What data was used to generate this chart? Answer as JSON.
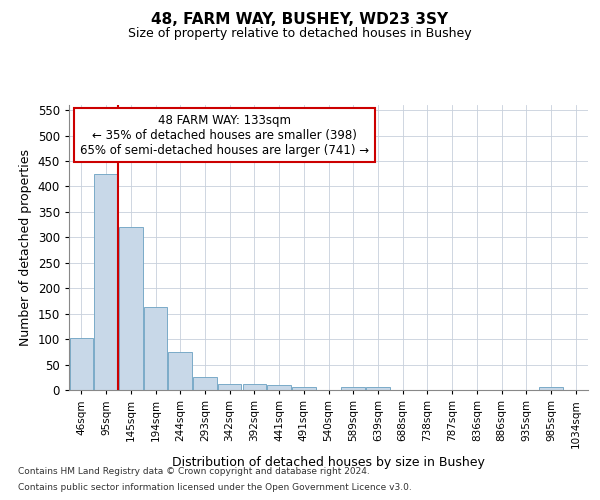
{
  "title1": "48, FARM WAY, BUSHEY, WD23 3SY",
  "title2": "Size of property relative to detached houses in Bushey",
  "xlabel": "Distribution of detached houses by size in Bushey",
  "ylabel": "Number of detached properties",
  "footer1": "Contains HM Land Registry data © Crown copyright and database right 2024.",
  "footer2": "Contains public sector information licensed under the Open Government Licence v3.0.",
  "categories": [
    "46sqm",
    "95sqm",
    "145sqm",
    "194sqm",
    "244sqm",
    "293sqm",
    "342sqm",
    "392sqm",
    "441sqm",
    "491sqm",
    "540sqm",
    "589sqm",
    "639sqm",
    "688sqm",
    "738sqm",
    "787sqm",
    "836sqm",
    "886sqm",
    "935sqm",
    "985sqm",
    "1034sqm"
  ],
  "values": [
    103,
    425,
    320,
    163,
    75,
    25,
    11,
    11,
    10,
    6,
    0,
    5,
    5,
    0,
    0,
    0,
    0,
    0,
    0,
    5,
    0
  ],
  "bar_color": "#c8d8e8",
  "bar_edge_color": "#7aaac8",
  "property_line_x": 1.5,
  "annotation_text1": "48 FARM WAY: 133sqm",
  "annotation_text2": "← 35% of detached houses are smaller (398)",
  "annotation_text3": "65% of semi-detached houses are larger (741) →",
  "annotation_box_color": "#ffffff",
  "annotation_box_edge": "#cc0000",
  "line_color": "#cc0000",
  "ylim": [
    0,
    560
  ],
  "yticks": [
    0,
    50,
    100,
    150,
    200,
    250,
    300,
    350,
    400,
    450,
    500,
    550
  ],
  "bg_color": "#ffffff",
  "grid_color": "#c8d0dc"
}
